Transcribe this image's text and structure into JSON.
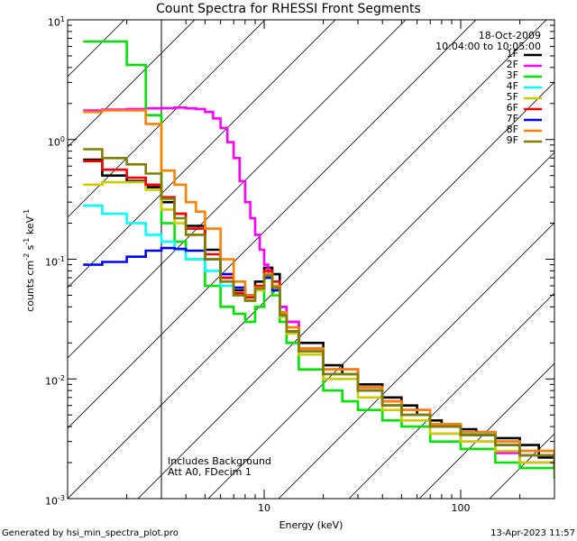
{
  "chart_data": {
    "type": "line",
    "title": "Count Spectra for RHESSI Front Segments",
    "xlabel": "Energy (keV)",
    "ylabel_parts": [
      "counts cm",
      "-2",
      " s",
      "-1",
      " keV",
      "-1"
    ],
    "x_scale": "log",
    "y_scale": "log",
    "xlim": [
      1.0,
      300.0
    ],
    "ylim": [
      0.001,
      10.0
    ],
    "x_tick_labels": [
      {
        "value": 10,
        "label": "10"
      },
      {
        "value": 100,
        "label": "100"
      }
    ],
    "y_tick_labels": [
      {
        "base": "10",
        "exp": "1",
        "value": 10
      },
      {
        "base": "10",
        "exp": "0",
        "value": 1
      },
      {
        "base": "10",
        "exp": "-1",
        "value": 0.1
      },
      {
        "base": "10",
        "exp": "-2",
        "value": 0.01
      },
      {
        "base": "10",
        "exp": "-3",
        "value": 0.001
      }
    ],
    "date": "18-Oct-2009",
    "time_range": "10:04:00 to 10:05:00",
    "notes": [
      "Includes Background",
      "Att A0, FDecim 1"
    ],
    "hatched_region_upper_kev": 3.0,
    "series": [
      {
        "name": "1F",
        "color": "#000000",
        "points": [
          [
            1.2,
            0.68
          ],
          [
            1.5,
            0.5
          ],
          [
            2.0,
            0.45
          ],
          [
            2.5,
            0.4
          ],
          [
            3.0,
            0.3
          ],
          [
            3.5,
            0.24
          ],
          [
            4.0,
            0.19
          ],
          [
            5.0,
            0.12
          ],
          [
            6.0,
            0.07
          ],
          [
            7.0,
            0.055
          ],
          [
            8.0,
            0.05
          ],
          [
            9.0,
            0.065
          ],
          [
            10.0,
            0.085
          ],
          [
            11.0,
            0.075
          ],
          [
            12.0,
            0.04
          ],
          [
            13.0,
            0.03
          ],
          [
            15.0,
            0.02
          ],
          [
            20.0,
            0.013
          ],
          [
            25.0,
            0.011
          ],
          [
            30.0,
            0.009
          ],
          [
            40.0,
            0.007
          ],
          [
            50.0,
            0.006
          ],
          [
            60.0,
            0.005
          ],
          [
            70.0,
            0.0045
          ],
          [
            80.0,
            0.004
          ],
          [
            100.0,
            0.0038
          ],
          [
            120.0,
            0.0034
          ],
          [
            150.0,
            0.0032
          ],
          [
            200.0,
            0.0028
          ],
          [
            250.0,
            0.0022
          ],
          [
            300.0,
            0.0018
          ]
        ]
      },
      {
        "name": "2F",
        "color": "#ff00ff",
        "points": [
          [
            1.2,
            1.75
          ],
          [
            1.5,
            1.78
          ],
          [
            2.0,
            1.8
          ],
          [
            2.5,
            1.82
          ],
          [
            3.0,
            1.83
          ],
          [
            3.5,
            1.85
          ],
          [
            4.0,
            1.82
          ],
          [
            4.5,
            1.8
          ],
          [
            5.0,
            1.7
          ],
          [
            5.5,
            1.5
          ],
          [
            6.0,
            1.25
          ],
          [
            6.5,
            0.95
          ],
          [
            7.0,
            0.7
          ],
          [
            7.5,
            0.45
          ],
          [
            8.0,
            0.3
          ],
          [
            8.5,
            0.22
          ],
          [
            9.0,
            0.16
          ],
          [
            9.5,
            0.12
          ],
          [
            10.0,
            0.09
          ],
          [
            10.5,
            0.075
          ],
          [
            11.0,
            0.06
          ],
          [
            12.0,
            0.04
          ],
          [
            13.0,
            0.03
          ],
          [
            15.0,
            0.018
          ],
          [
            20.0,
            0.012
          ],
          [
            30.0,
            0.008
          ],
          [
            40.0,
            0.006
          ],
          [
            50.0,
            0.005
          ],
          [
            70.0,
            0.0035
          ],
          [
            100.0,
            0.003
          ],
          [
            150.0,
            0.0024
          ],
          [
            200.0,
            0.002
          ],
          [
            300.0,
            0.0016
          ]
        ]
      },
      {
        "name": "3F",
        "color": "#00e600",
        "points": [
          [
            1.2,
            6.6
          ],
          [
            1.5,
            6.6
          ],
          [
            2.0,
            4.2
          ],
          [
            2.5,
            1.6
          ],
          [
            3.0,
            0.2
          ],
          [
            3.5,
            0.14
          ],
          [
            4.0,
            0.1
          ],
          [
            5.0,
            0.06
          ],
          [
            6.0,
            0.04
          ],
          [
            7.0,
            0.035
          ],
          [
            8.0,
            0.03
          ],
          [
            9.0,
            0.04
          ],
          [
            10.0,
            0.07
          ],
          [
            11.0,
            0.05
          ],
          [
            12.0,
            0.03
          ],
          [
            13.0,
            0.02
          ],
          [
            15.0,
            0.012
          ],
          [
            20.0,
            0.008
          ],
          [
            25.0,
            0.0065
          ],
          [
            30.0,
            0.0055
          ],
          [
            40.0,
            0.0045
          ],
          [
            50.0,
            0.004
          ],
          [
            70.0,
            0.003
          ],
          [
            100.0,
            0.0026
          ],
          [
            150.0,
            0.002
          ],
          [
            200.0,
            0.0018
          ],
          [
            300.0,
            0.0015
          ]
        ]
      },
      {
        "name": "4F",
        "color": "#00ffff",
        "points": [
          [
            1.2,
            0.28
          ],
          [
            1.5,
            0.24
          ],
          [
            2.0,
            0.2
          ],
          [
            2.5,
            0.16
          ],
          [
            3.0,
            0.14
          ],
          [
            3.5,
            0.12
          ],
          [
            4.0,
            0.1
          ],
          [
            5.0,
            0.08
          ],
          [
            6.0,
            0.06
          ],
          [
            7.0,
            0.05
          ],
          [
            8.0,
            0.045
          ],
          [
            9.0,
            0.06
          ],
          [
            10.0,
            0.075
          ],
          [
            11.0,
            0.06
          ],
          [
            12.0,
            0.035
          ],
          [
            13.0,
            0.025
          ],
          [
            15.0,
            0.017
          ],
          [
            20.0,
            0.011
          ],
          [
            30.0,
            0.008
          ],
          [
            40.0,
            0.006
          ],
          [
            50.0,
            0.005
          ],
          [
            70.0,
            0.004
          ],
          [
            100.0,
            0.0035
          ],
          [
            150.0,
            0.003
          ],
          [
            200.0,
            0.0025
          ],
          [
            300.0,
            0.002
          ]
        ]
      },
      {
        "name": "5F",
        "color": "#cccc00",
        "points": [
          [
            1.2,
            0.42
          ],
          [
            1.5,
            0.44
          ],
          [
            2.0,
            0.44
          ],
          [
            2.5,
            0.38
          ],
          [
            3.0,
            0.26
          ],
          [
            3.5,
            0.2
          ],
          [
            4.0,
            0.16
          ],
          [
            5.0,
            0.1
          ],
          [
            6.0,
            0.065
          ],
          [
            7.0,
            0.05
          ],
          [
            8.0,
            0.045
          ],
          [
            9.0,
            0.055
          ],
          [
            10.0,
            0.07
          ],
          [
            11.0,
            0.055
          ],
          [
            12.0,
            0.033
          ],
          [
            13.0,
            0.024
          ],
          [
            15.0,
            0.016
          ],
          [
            20.0,
            0.01
          ],
          [
            30.0,
            0.007
          ],
          [
            40.0,
            0.0055
          ],
          [
            50.0,
            0.0045
          ],
          [
            70.0,
            0.0035
          ],
          [
            100.0,
            0.003
          ],
          [
            150.0,
            0.0025
          ],
          [
            200.0,
            0.002
          ],
          [
            300.0,
            0.0016
          ]
        ]
      },
      {
        "name": "6F",
        "color": "#ff0000",
        "points": [
          [
            1.2,
            0.66
          ],
          [
            1.5,
            0.56
          ],
          [
            2.0,
            0.48
          ],
          [
            2.5,
            0.42
          ],
          [
            3.0,
            0.33
          ],
          [
            3.5,
            0.24
          ],
          [
            4.0,
            0.18
          ],
          [
            5.0,
            0.11
          ],
          [
            6.0,
            0.07
          ],
          [
            7.0,
            0.052
          ],
          [
            8.0,
            0.048
          ],
          [
            9.0,
            0.06
          ],
          [
            10.0,
            0.08
          ],
          [
            11.0,
            0.065
          ],
          [
            12.0,
            0.036
          ],
          [
            13.0,
            0.027
          ],
          [
            15.0,
            0.018
          ],
          [
            20.0,
            0.012
          ],
          [
            30.0,
            0.0085
          ],
          [
            40.0,
            0.0065
          ],
          [
            50.0,
            0.0055
          ],
          [
            70.0,
            0.0042
          ],
          [
            100.0,
            0.0036
          ],
          [
            150.0,
            0.003
          ],
          [
            200.0,
            0.0025
          ],
          [
            300.0,
            0.002
          ]
        ]
      },
      {
        "name": "7F",
        "color": "#0000ff",
        "points": [
          [
            1.2,
            0.09
          ],
          [
            1.5,
            0.095
          ],
          [
            2.0,
            0.105
          ],
          [
            2.5,
            0.118
          ],
          [
            3.0,
            0.124
          ],
          [
            3.5,
            0.122
          ],
          [
            4.0,
            0.118
          ],
          [
            5.0,
            0.1
          ],
          [
            6.0,
            0.075
          ],
          [
            7.0,
            0.058
          ],
          [
            8.0,
            0.05
          ],
          [
            9.0,
            0.058
          ],
          [
            10.0,
            0.07
          ],
          [
            11.0,
            0.055
          ],
          [
            12.0,
            0.034
          ],
          [
            13.0,
            0.025
          ],
          [
            15.0,
            0.017
          ],
          [
            20.0,
            0.011
          ],
          [
            30.0,
            0.008
          ],
          [
            40.0,
            0.006
          ],
          [
            50.0,
            0.005
          ],
          [
            70.0,
            0.004
          ],
          [
            100.0,
            0.0034
          ],
          [
            150.0,
            0.0028
          ],
          [
            200.0,
            0.0023
          ],
          [
            300.0,
            0.0018
          ]
        ]
      },
      {
        "name": "8F",
        "color": "#ff8000",
        "points": [
          [
            1.2,
            1.7
          ],
          [
            1.5,
            1.75
          ],
          [
            2.0,
            1.75
          ],
          [
            2.5,
            1.35
          ],
          [
            3.0,
            0.55
          ],
          [
            3.5,
            0.42
          ],
          [
            4.0,
            0.3
          ],
          [
            4.5,
            0.25
          ],
          [
            5.0,
            0.18
          ],
          [
            6.0,
            0.1
          ],
          [
            7.0,
            0.065
          ],
          [
            8.0,
            0.05
          ],
          [
            9.0,
            0.058
          ],
          [
            10.0,
            0.075
          ],
          [
            11.0,
            0.06
          ],
          [
            12.0,
            0.036
          ],
          [
            13.0,
            0.027
          ],
          [
            15.0,
            0.018
          ],
          [
            20.0,
            0.012
          ],
          [
            30.0,
            0.0085
          ],
          [
            40.0,
            0.0065
          ],
          [
            50.0,
            0.0055
          ],
          [
            70.0,
            0.0042
          ],
          [
            100.0,
            0.0036
          ],
          [
            150.0,
            0.003
          ],
          [
            200.0,
            0.0025
          ],
          [
            300.0,
            0.002
          ]
        ]
      },
      {
        "name": "9F",
        "color": "#808000",
        "points": [
          [
            1.2,
            0.83
          ],
          [
            1.5,
            0.7
          ],
          [
            2.0,
            0.62
          ],
          [
            2.5,
            0.52
          ],
          [
            3.0,
            0.32
          ],
          [
            3.5,
            0.22
          ],
          [
            4.0,
            0.16
          ],
          [
            5.0,
            0.1
          ],
          [
            6.0,
            0.065
          ],
          [
            7.0,
            0.05
          ],
          [
            8.0,
            0.045
          ],
          [
            9.0,
            0.057
          ],
          [
            10.0,
            0.073
          ],
          [
            11.0,
            0.058
          ],
          [
            12.0,
            0.034
          ],
          [
            13.0,
            0.025
          ],
          [
            15.0,
            0.017
          ],
          [
            20.0,
            0.011
          ],
          [
            30.0,
            0.008
          ],
          [
            40.0,
            0.006
          ],
          [
            50.0,
            0.005
          ],
          [
            70.0,
            0.004
          ],
          [
            100.0,
            0.0034
          ],
          [
            150.0,
            0.0028
          ],
          [
            200.0,
            0.0023
          ],
          [
            300.0,
            0.0018
          ]
        ]
      }
    ]
  },
  "footer": {
    "generated_by": "Generated by hsi_min_spectra_plot.pro",
    "timestamp": "13-Apr-2023 11:57"
  }
}
